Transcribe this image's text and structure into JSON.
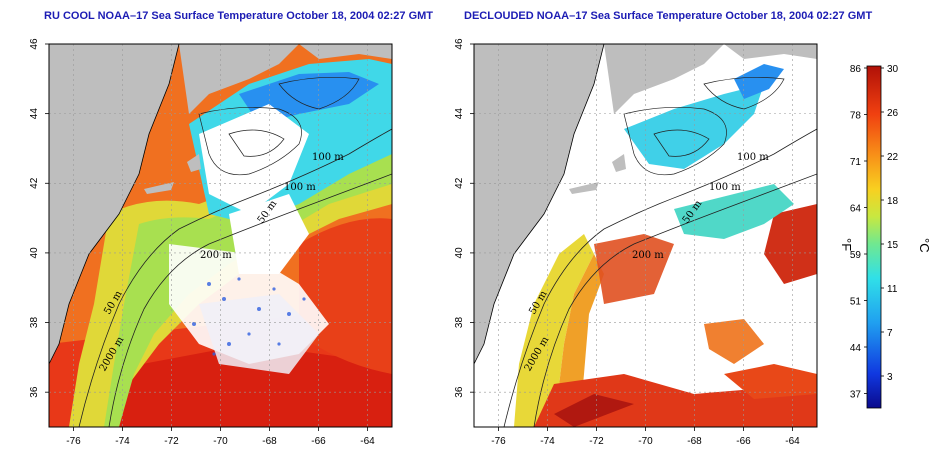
{
  "panels": [
    {
      "title": "RU COOL NOAA–17 Sea Surface Temperature October 18, 2004 02:27 GMT",
      "variant": "raw"
    },
    {
      "title": "DECLOUDED NOAA–17 Sea Surface Temperature October 18, 2004 02:27 GMT",
      "variant": "declouded"
    }
  ],
  "axes": {
    "x_ticks": [
      "-76",
      "-74",
      "-72",
      "-70",
      "-68",
      "-66",
      "-64"
    ],
    "y_ticks": [
      "36",
      "38",
      "40",
      "42",
      "44",
      "46"
    ],
    "lon_range": [
      -77,
      -63
    ],
    "lat_range": [
      35,
      46
    ]
  },
  "contour_labels": {
    "raw": [
      "100 m",
      "100 m",
      "50 m",
      "200 m",
      "50 m",
      "2000 m"
    ],
    "declouded": [
      "100 m",
      "100 m",
      "50 m",
      "200 m",
      "50 m",
      "2000 m"
    ]
  },
  "colorbar": {
    "fahrenheit_ticks": [
      "86",
      "78",
      "71",
      "64",
      "59",
      "51",
      "44",
      "37"
    ],
    "celsius_ticks": [
      "30",
      "26",
      "22",
      "18",
      "15",
      "11",
      "7",
      "3"
    ],
    "left_unit": "°F",
    "right_unit": "°C",
    "range_c": [
      0,
      30
    ]
  },
  "colors": {
    "land": "#bebebe",
    "cloud": "#ffffff",
    "title": "#1c1cb4"
  }
}
